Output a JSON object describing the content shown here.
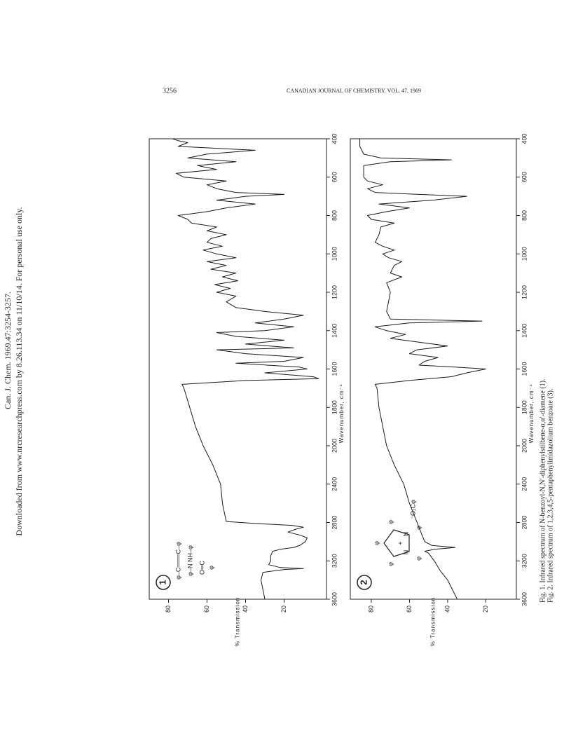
{
  "header": {
    "page_number": "3256",
    "journal": "CANADIAN JOURNAL OF CHEMISTRY. VOL. 47, 1969"
  },
  "watermark": [
    "Can. J. Chem. 1969.47:3254-3257.",
    "Downloaded from www.nrcresearchpress.com by 8.26.113.34 on 11/10/14. For personal use only."
  ],
  "captions": [
    "Fig. 1.  Infrared spectrum of N-benzoyl-N,N′-diphenylstilbene-α,α′-diamene (1).",
    "Fig. 2.  Infrared spectrum of 1,2,3,4,5-pentaphenylimidazolium benzoate (3)."
  ],
  "chart_data": [
    {
      "type": "line",
      "label": "1",
      "x_label": "Wavenumber, cm⁻¹",
      "y_label": "% Transmission",
      "structure": [
        "φ–C═══C–φ",
        "φ–N      NH–φ",
        "O═C",
        "φ"
      ],
      "xlim": [
        3600,
        400
      ],
      "xticks": [
        3600,
        3200,
        2800,
        2400,
        2000,
        1800,
        1600,
        1400,
        1200,
        1000,
        800,
        600,
        400
      ],
      "ylim": [
        -2,
        90
      ],
      "yticks": [
        20,
        40,
        60,
        80
      ],
      "x": [
        3600,
        3500,
        3400,
        3320,
        3290,
        3280,
        3270,
        3240,
        3200,
        3150,
        3100,
        3080,
        3060,
        3040,
        3000,
        2960,
        2930,
        2900,
        2870,
        2850,
        2830,
        2810,
        2790,
        2700,
        2600,
        2400,
        2200,
        2000,
        1900,
        1800,
        1700,
        1680,
        1660,
        1650,
        1640,
        1620,
        1600,
        1590,
        1570,
        1560,
        1540,
        1520,
        1500,
        1490,
        1470,
        1450,
        1430,
        1410,
        1400,
        1380,
        1360,
        1340,
        1320,
        1300,
        1280,
        1250,
        1220,
        1200,
        1180,
        1160,
        1140,
        1120,
        1100,
        1080,
        1060,
        1040,
        1020,
        1000,
        980,
        960,
        940,
        920,
        900,
        880,
        860,
        840,
        820,
        800,
        780,
        760,
        740,
        720,
        700,
        690,
        680,
        660,
        640,
        620,
        600,
        580,
        560,
        540,
        520,
        500,
        480,
        460,
        440,
        420,
        410,
        400
      ],
      "series": [
        {
          "color": "#1a1a1a",
          "values": [
            30,
            31,
            32,
            31,
            20,
            10,
            22,
            28,
            27,
            27,
            26,
            22,
            15,
            12,
            9,
            8,
            12,
            18,
            14,
            10,
            16,
            35,
            50,
            51,
            52,
            53,
            57,
            62,
            66,
            69,
            72,
            73,
            40,
            2,
            5,
            30,
            8,
            12,
            45,
            20,
            10,
            40,
            55,
            15,
            40,
            20,
            45,
            55,
            30,
            15,
            35,
            20,
            10,
            30,
            45,
            50,
            45,
            55,
            48,
            56,
            44,
            52,
            45,
            58,
            50,
            60,
            45,
            55,
            62,
            52,
            60,
            58,
            50,
            60,
            55,
            68,
            70,
            75,
            60,
            50,
            35,
            55,
            40,
            20,
            45,
            55,
            60,
            50,
            72,
            76,
            55,
            65,
            45,
            70,
            60,
            35,
            75,
            70,
            75,
            78
          ]
        }
      ]
    },
    {
      "type": "line",
      "label": "2",
      "x_label": "Wavenumber, cm⁻¹",
      "y_label": "% Transmission",
      "structure": [
        "N",
        "N",
        "+",
        "φ",
        "φ",
        "φ",
        "φ",
        "φ",
        "⁻O₂Cφ"
      ],
      "xlim": [
        3600,
        400
      ],
      "xticks": [
        3600,
        3200,
        2800,
        2400,
        2000,
        1800,
        1600,
        1400,
        1200,
        1000,
        800,
        600,
        400
      ],
      "ylim": [
        4,
        91
      ],
      "yticks": [
        20,
        40,
        60,
        80
      ],
      "x": [
        3600,
        3400,
        3300,
        3200,
        3120,
        3100,
        3080,
        3060,
        3040,
        3000,
        2800,
        2600,
        2400,
        2200,
        2000,
        1900,
        1800,
        1700,
        1680,
        1660,
        1640,
        1620,
        1600,
        1590,
        1580,
        1560,
        1540,
        1520,
        1500,
        1480,
        1460,
        1440,
        1420,
        1400,
        1380,
        1360,
        1350,
        1340,
        1300,
        1200,
        1150,
        1120,
        1100,
        1060,
        1040,
        1020,
        1000,
        980,
        960,
        940,
        900,
        860,
        840,
        820,
        800,
        780,
        760,
        740,
        720,
        700,
        690,
        680,
        660,
        640,
        620,
        600,
        580,
        560,
        540,
        520,
        510,
        500,
        480,
        440,
        400
      ],
      "series": [
        {
          "color": "#1a1a1a",
          "values": [
            35,
            40,
            44,
            47,
            50,
            52,
            47,
            36,
            48,
            52,
            56,
            60,
            63,
            68,
            72,
            74,
            76,
            77,
            78,
            60,
            38,
            30,
            20,
            36,
            55,
            52,
            45,
            60,
            56,
            40,
            55,
            70,
            62,
            72,
            78,
            60,
            22,
            70,
            72,
            70,
            72,
            64,
            70,
            68,
            64,
            71,
            74,
            68,
            74,
            78,
            76,
            75,
            68,
            80,
            82,
            72,
            60,
            76,
            48,
            30,
            55,
            78,
            82,
            74,
            82,
            84,
            84,
            84,
            84,
            70,
            38,
            75,
            84,
            86,
            86
          ]
        }
      ]
    }
  ]
}
